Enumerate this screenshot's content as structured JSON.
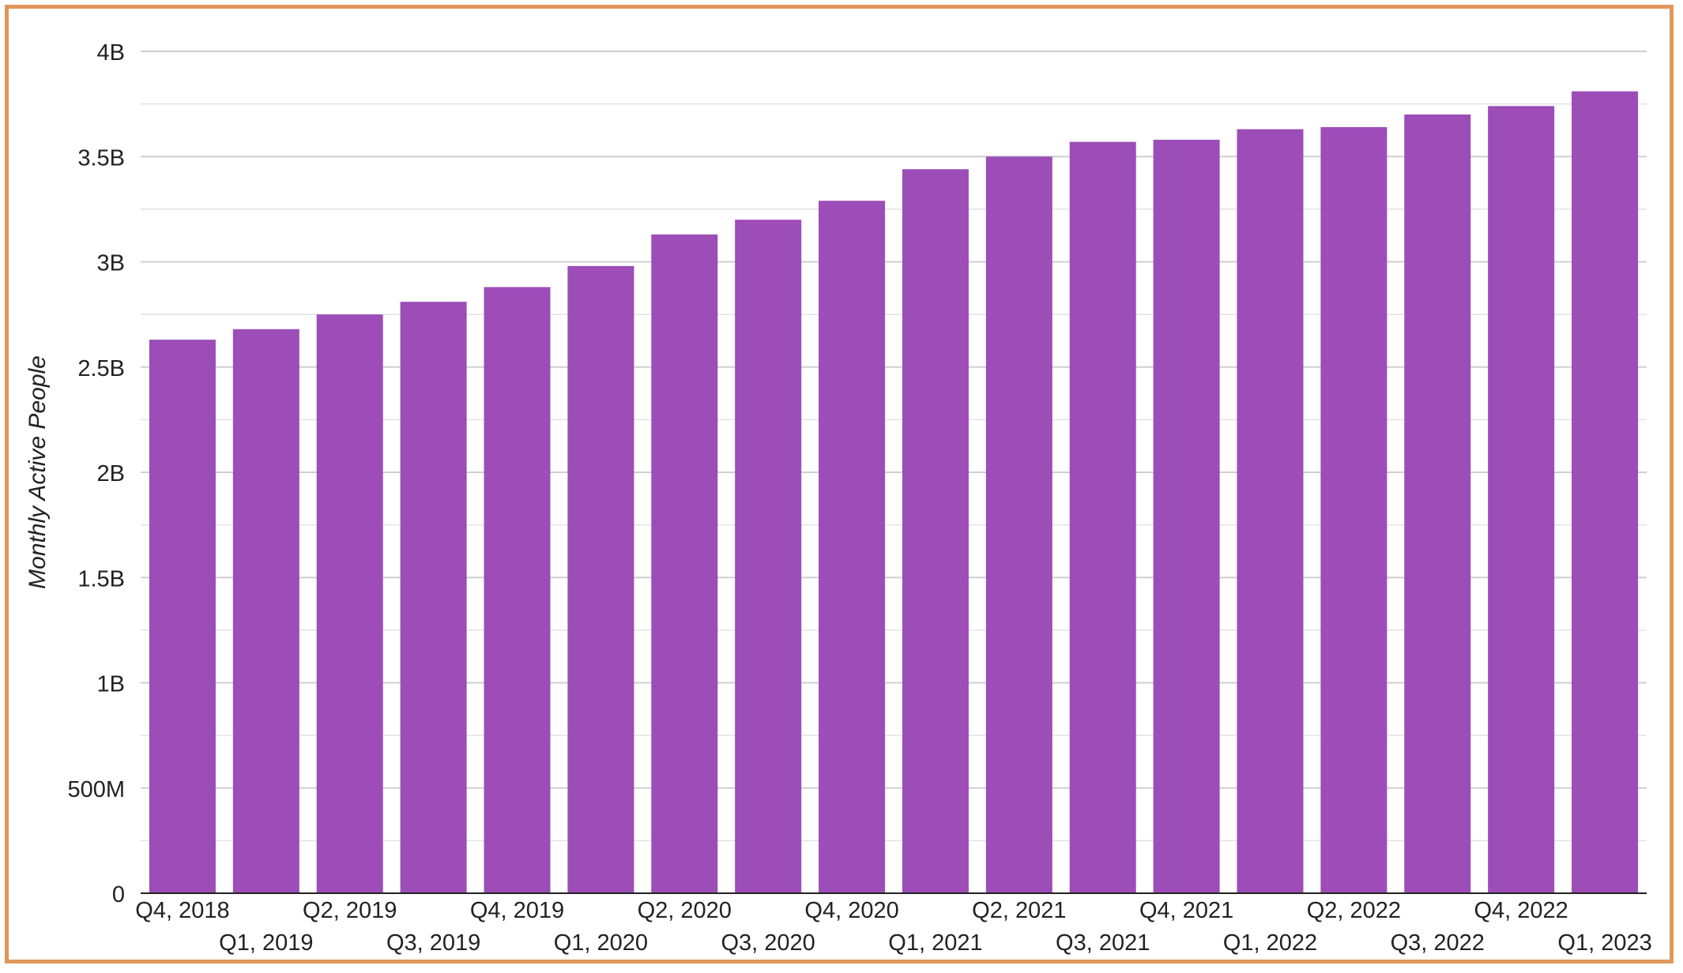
{
  "chart_data": {
    "type": "bar",
    "title": "",
    "xlabel": "",
    "ylabel": "Monthly Active People",
    "ylim": [
      0,
      4000000000
    ],
    "yticks": [
      {
        "value": 0,
        "label": "0"
      },
      {
        "value": 500000000,
        "label": "500M"
      },
      {
        "value": 1000000000,
        "label": "1B"
      },
      {
        "value": 1500000000,
        "label": "1.5B"
      },
      {
        "value": 2000000000,
        "label": "2B"
      },
      {
        "value": 2500000000,
        "label": "2.5B"
      },
      {
        "value": 3000000000,
        "label": "3B"
      },
      {
        "value": 3500000000,
        "label": "3.5B"
      },
      {
        "value": 4000000000,
        "label": "4B"
      }
    ],
    "grid": true,
    "bar_color": "#9c4db7",
    "categories": [
      "Q4, 2018",
      "Q1, 2019",
      "Q2, 2019",
      "Q3, 2019",
      "Q4, 2019",
      "Q1, 2020",
      "Q2, 2020",
      "Q3, 2020",
      "Q4, 2020",
      "Q1, 2021",
      "Q2, 2021",
      "Q3, 2021",
      "Q4, 2021",
      "Q1, 2022",
      "Q2, 2022",
      "Q3, 2022",
      "Q4, 2022",
      "Q1, 2023"
    ],
    "values": [
      2630000000,
      2680000000,
      2750000000,
      2810000000,
      2880000000,
      2980000000,
      3130000000,
      3200000000,
      3290000000,
      3440000000,
      3500000000,
      3570000000,
      3580000000,
      3630000000,
      3640000000,
      3700000000,
      3740000000,
      3810000000
    ]
  }
}
